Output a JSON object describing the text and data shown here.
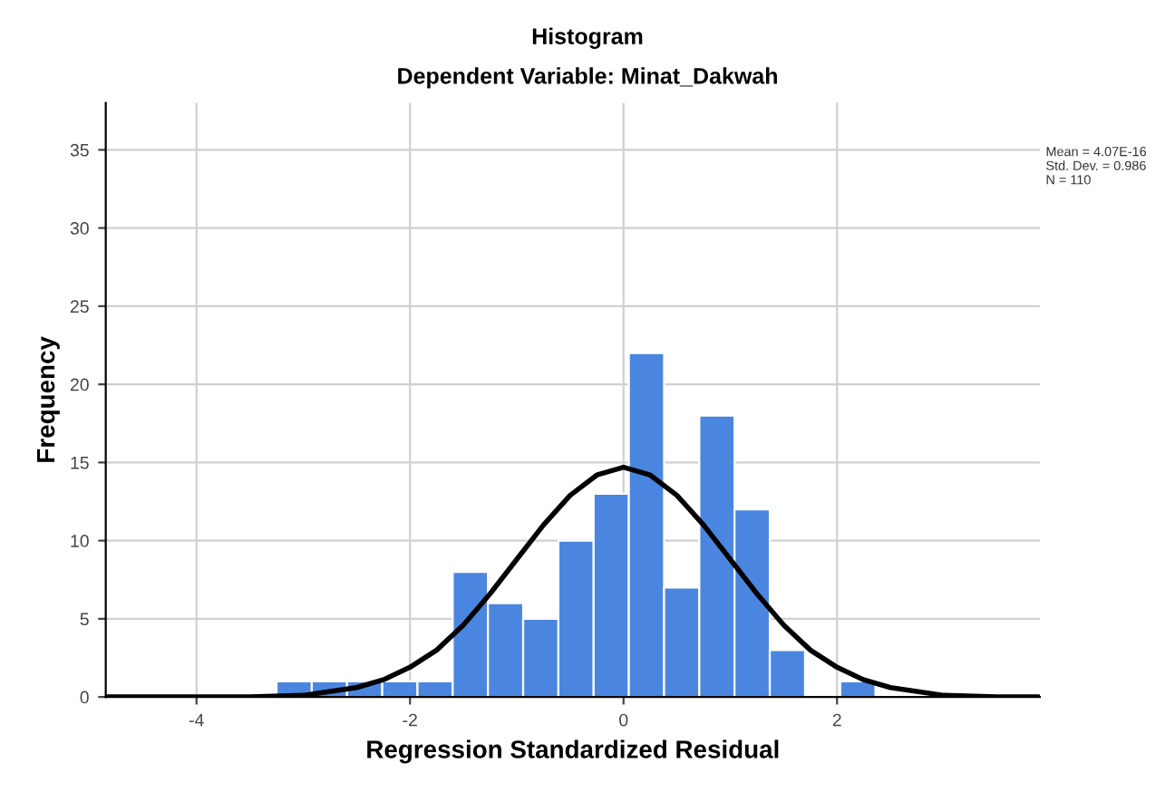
{
  "chart_data": {
    "type": "histogram",
    "title": "Histogram",
    "subtitle": "Dependent Variable: Minat_Dakwah",
    "xlabel": "Regression Standardized Residual",
    "ylabel": "Frequency",
    "bins": [
      -3.25,
      -2.92,
      -2.59,
      -2.26,
      -1.93,
      -1.6,
      -1.27,
      -0.94,
      -0.61,
      -0.28,
      0.05,
      0.38,
      0.71,
      1.04,
      1.37,
      1.7,
      2.03,
      2.36
    ],
    "series": [
      {
        "color": "#4a86e0",
        "values": [
          1,
          1,
          1,
          1,
          1,
          8,
          6,
          5,
          10,
          13,
          22,
          7,
          18,
          12,
          3,
          0,
          1
        ]
      },
      {
        "type": "line",
        "color": "#000000",
        "x": [
          -4.85,
          -4,
          -3.5,
          -3,
          -2.5,
          -2.25,
          -2,
          -1.75,
          -1.5,
          -1.25,
          -1,
          -0.75,
          -0.5,
          -0.25,
          0,
          0.25,
          0.5,
          0.75,
          1,
          1.25,
          1.5,
          1.75,
          2,
          2.25,
          2.5,
          3,
          3.5,
          3.9
        ],
        "values": [
          0,
          0,
          0,
          0.1,
          0.6,
          1.1,
          1.9,
          3,
          4.6,
          6.6,
          8.8,
          11,
          12.9,
          14.2,
          14.7,
          14.2,
          12.9,
          11,
          8.8,
          6.6,
          4.6,
          3,
          1.9,
          1.1,
          0.6,
          0.1,
          0,
          0
        ]
      }
    ],
    "xlim": [
      -4.85,
      3.9
    ],
    "ylim": [
      0,
      38
    ],
    "xticks": [
      -4,
      -2,
      0,
      2
    ],
    "yticks": [
      0,
      5,
      10,
      15,
      20,
      25,
      30,
      35
    ],
    "grid": true,
    "marker": "none",
    "line_style": "solid",
    "annotations": [
      "Mean = 4.07E-16",
      "Std. Dev. = 0.986",
      "N = 110"
    ]
  }
}
